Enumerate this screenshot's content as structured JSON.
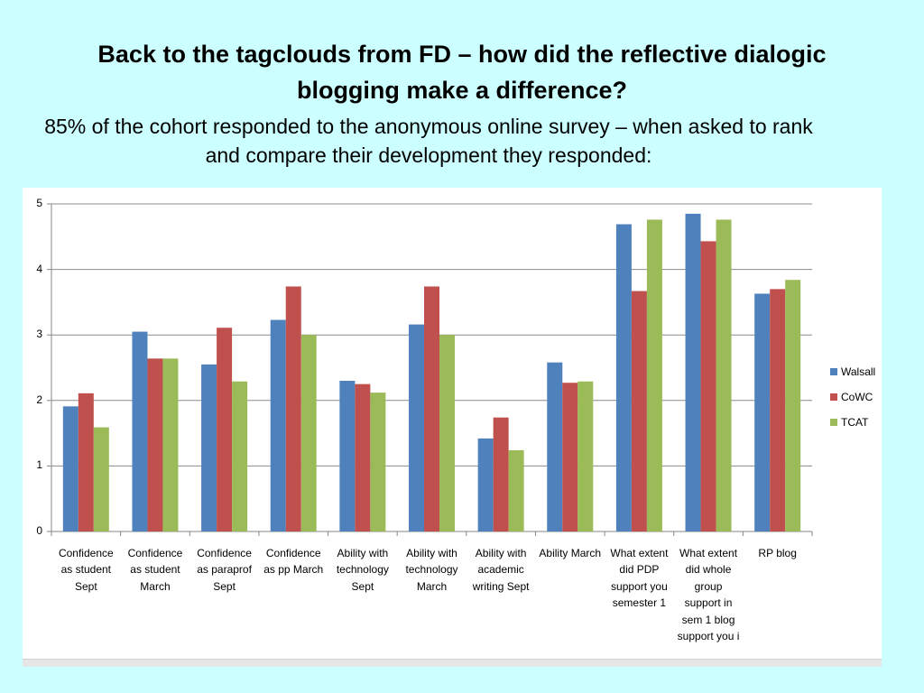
{
  "slide": {
    "title": "Back to the tagclouds from FD – how did the reflective dialogic blogging make a difference?",
    "subtitle": "85% of the cohort responded to the anonymous online survey – when asked to rank and compare their development they responded:"
  },
  "chart_data": {
    "type": "bar",
    "title": "",
    "xlabel": "",
    "ylabel": "",
    "ylim": [
      0,
      5
    ],
    "yticks": [
      0,
      1,
      2,
      3,
      4,
      5
    ],
    "grid": true,
    "legend_position": "right",
    "categories": [
      "Confidence as student Sept",
      "Confidence as student March",
      "Confidence as paraprof Sept",
      "Confidence as pp March",
      "Ability with technology Sept",
      "Ability with technology March",
      "Ability with academic writing Sept",
      "Ability March",
      "What extent did PDP support you semester 1",
      "What extent did whole group support in sem 1 blog support you i",
      "RP blog"
    ],
    "category_lines": [
      [
        "Confidence",
        "as student",
        "Sept"
      ],
      [
        "Confidence",
        "as student",
        "March"
      ],
      [
        "Confidence",
        "as paraprof",
        "Sept"
      ],
      [
        "Confidence",
        "as pp March"
      ],
      [
        "Ability with",
        "technology",
        "Sept"
      ],
      [
        "Ability with",
        "technology",
        "March"
      ],
      [
        "Ability with",
        "academic",
        "writing Sept"
      ],
      [
        "Ability March"
      ],
      [
        "What extent",
        "did PDP",
        "support you",
        "semester 1"
      ],
      [
        "What extent",
        "did whole",
        "group",
        "support in",
        "sem 1 blog",
        "support you i"
      ],
      [
        "RP blog"
      ]
    ],
    "series": [
      {
        "name": "Walsall",
        "color": "#4f81bd",
        "values": [
          1.91,
          3.05,
          2.55,
          3.23,
          2.3,
          3.16,
          1.42,
          2.58,
          4.69,
          4.85,
          3.63
        ]
      },
      {
        "name": "CoWC",
        "color": "#c0504d",
        "values": [
          2.11,
          2.64,
          3.11,
          3.74,
          2.25,
          3.74,
          1.74,
          2.27,
          3.67,
          4.43,
          3.7
        ]
      },
      {
        "name": "TCAT",
        "color": "#9bbb59",
        "values": [
          1.59,
          2.64,
          2.29,
          3.0,
          2.12,
          3.0,
          1.24,
          2.29,
          4.76,
          4.76,
          3.84
        ]
      }
    ]
  }
}
